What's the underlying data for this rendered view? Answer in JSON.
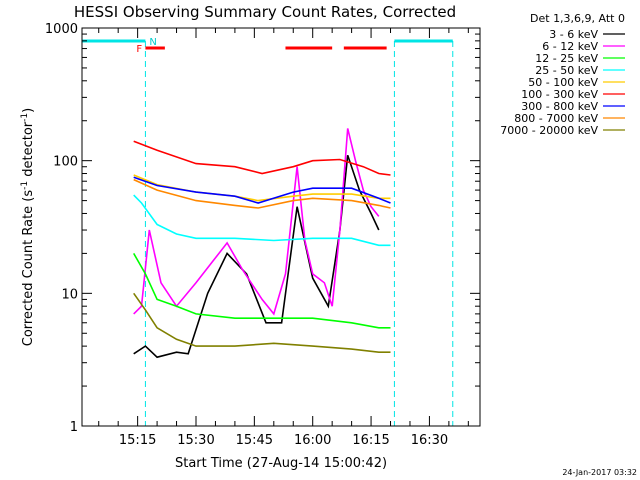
{
  "chart_data": {
    "type": "line",
    "title": "HESSI Observing Summary Count Rates, Corrected",
    "xlabel": "Start Time (27-Aug-14 15:00:42)",
    "ylabel_main": "Corrected Count Rate (s",
    "ylabel_sup1": "-1",
    "ylabel_mid": " detector",
    "ylabel_sup2": "-1",
    "ylabel_end": ")",
    "yscale": "log",
    "ylim": [
      1,
      1000
    ],
    "xlim": [
      "15:00:42",
      "16:43:00"
    ],
    "x_ticks": [
      "15:15",
      "15:30",
      "15:45",
      "16:00",
      "16:15",
      "16:30"
    ],
    "y_ticks": [
      "1",
      "10",
      "100",
      "1000"
    ],
    "legend_header": "Det 1,3,6,9, Att 0",
    "timestamp": "24-Jan-2017 03:32",
    "markers": {
      "flag_labels": [
        "F",
        "N"
      ],
      "flare_bars": [
        [
          "15:17",
          "15:22"
        ],
        [
          "15:53",
          "16:05"
        ],
        [
          "16:08",
          "16:19"
        ]
      ],
      "night_bars": [
        [
          "15:00:42",
          "15:17"
        ],
        [
          "16:21",
          "16:36"
        ]
      ],
      "night_lines": [
        "15:17",
        "16:21",
        "16:36"
      ]
    },
    "series": [
      {
        "name": "3 - 6 keV",
        "color": "#000000",
        "x": [
          "15:14",
          "15:17",
          "15:20",
          "15:25",
          "15:28",
          "15:33",
          "15:38",
          "15:43",
          "15:48",
          "15:52",
          "15:56",
          "16:00",
          "16:04",
          "16:07",
          "16:09",
          "16:12",
          "16:15",
          "16:17"
        ],
        "y": [
          3.5,
          4,
          3.3,
          3.6,
          3.5,
          10,
          20,
          14,
          6,
          6,
          45,
          13,
          8,
          30,
          110,
          60,
          40,
          30
        ]
      },
      {
        "name": "6 - 12 keV",
        "color": "#ff00ff",
        "x": [
          "15:14",
          "15:16",
          "15:18",
          "15:21",
          "15:25",
          "15:30",
          "15:34",
          "15:38",
          "15:42",
          "15:47",
          "15:50",
          "15:53",
          "15:56",
          "15:58",
          "16:00",
          "16:03",
          "16:05",
          "16:07",
          "16:09",
          "16:11",
          "16:13",
          "16:15",
          "16:17"
        ],
        "y": [
          7,
          8,
          30,
          12,
          8,
          12,
          17,
          24,
          15,
          9,
          7,
          14,
          90,
          25,
          14,
          12,
          8,
          30,
          175,
          100,
          60,
          45,
          38
        ]
      },
      {
        "name": "12 - 25 keV",
        "color": "#00ff00",
        "x": [
          "15:14",
          "15:17",
          "15:20",
          "15:25",
          "15:30",
          "15:40",
          "15:50",
          "16:00",
          "16:10",
          "16:17",
          "16:20"
        ],
        "y": [
          20,
          14,
          9,
          8,
          7,
          6.5,
          6.5,
          6.5,
          6,
          5.5,
          5.5
        ]
      },
      {
        "name": "25 - 50 keV",
        "color": "#00ffff",
        "x": [
          "15:14",
          "15:16",
          "15:20",
          "15:25",
          "15:30",
          "15:40",
          "15:50",
          "16:00",
          "16:10",
          "16:17",
          "16:20"
        ],
        "y": [
          55,
          48,
          33,
          28,
          26,
          26,
          25,
          26,
          26,
          23,
          23
        ]
      },
      {
        "name": "50 - 100 keV",
        "color": "#ffcc00",
        "x": [
          "15:14",
          "15:20",
          "15:30",
          "15:40",
          "15:46",
          "15:55",
          "16:00",
          "16:10",
          "16:17",
          "16:20"
        ],
        "y": [
          78,
          66,
          58,
          54,
          50,
          54,
          56,
          56,
          52,
          52
        ]
      },
      {
        "name": "100 - 300 keV",
        "color": "#ff0000",
        "x": [
          "15:14",
          "15:20",
          "15:30",
          "15:40",
          "15:47",
          "15:55",
          "16:00",
          "16:07",
          "16:13",
          "16:17",
          "16:20"
        ],
        "y": [
          140,
          120,
          95,
          90,
          80,
          90,
          100,
          102,
          90,
          80,
          78
        ]
      },
      {
        "name": "300 - 800 keV",
        "color": "#0000ff",
        "x": [
          "15:14",
          "15:20",
          "15:30",
          "15:40",
          "15:46",
          "15:55",
          "16:00",
          "16:10",
          "16:17",
          "16:20"
        ],
        "y": [
          75,
          65,
          58,
          54,
          48,
          58,
          62,
          62,
          52,
          48
        ]
      },
      {
        "name": "800 - 7000 keV",
        "color": "#ff8800",
        "x": [
          "15:14",
          "15:20",
          "15:30",
          "15:40",
          "15:46",
          "15:55",
          "16:00",
          "16:10",
          "16:17",
          "16:20"
        ],
        "y": [
          72,
          60,
          50,
          46,
          44,
          50,
          52,
          50,
          46,
          44
        ]
      },
      {
        "name": "7000 - 20000 keV",
        "color": "#808000",
        "x": [
          "15:14",
          "15:17",
          "15:20",
          "15:25",
          "15:30",
          "15:40",
          "15:50",
          "16:00",
          "16:10",
          "16:17",
          "16:20"
        ],
        "y": [
          10,
          7.5,
          5.5,
          4.5,
          4,
          4,
          4.2,
          4,
          3.8,
          3.6,
          3.6
        ]
      }
    ]
  }
}
